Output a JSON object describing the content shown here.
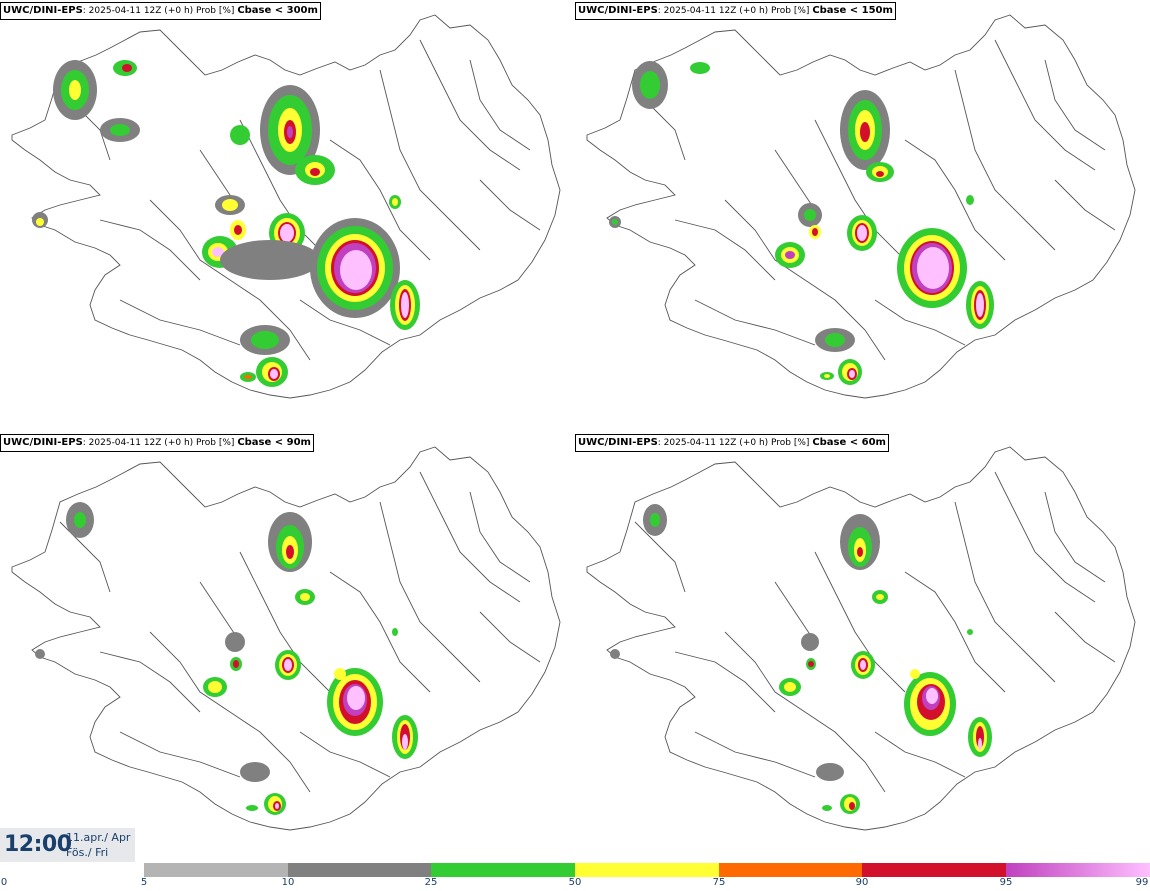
{
  "panels": [
    {
      "model": "UWC/DINI-EPS",
      "info": ": 2025-04-11 12Z (+0 h) Prob [%] ",
      "cbase": "Cbase < 300m"
    },
    {
      "model": "UWC/DINI-EPS",
      "info": ": 2025-04-11 12Z (+0 h) Prob [%] ",
      "cbase": "Cbase < 150m"
    },
    {
      "model": "UWC/DINI-EPS",
      "info": ": 2025-04-11 12Z (+0 h) Prob [%] ",
      "cbase": "Cbase < 90m"
    },
    {
      "model": "UWC/DINI-EPS",
      "info": ": 2025-04-11 12Z (+0 h) Prob [%] ",
      "cbase": "Cbase < 60m"
    }
  ],
  "time": {
    "clock": "12:00",
    "date_line1": "11.apr./ Apr",
    "date_line2": "Fös./ Fri"
  },
  "legend": {
    "ticks": [
      "0",
      "5",
      "10",
      "25",
      "50",
      "75",
      "90",
      "95",
      "99"
    ],
    "colors": {
      "5-10": "#b4b4b4",
      "10-25": "#808080",
      "25-50": "#33cc33",
      "50-75": "#ffff33",
      "75-90": "#ff6a00",
      "90-95": "#d3102b",
      "95-99": "#c040c0",
      "99": "#ffc0ff"
    }
  }
}
